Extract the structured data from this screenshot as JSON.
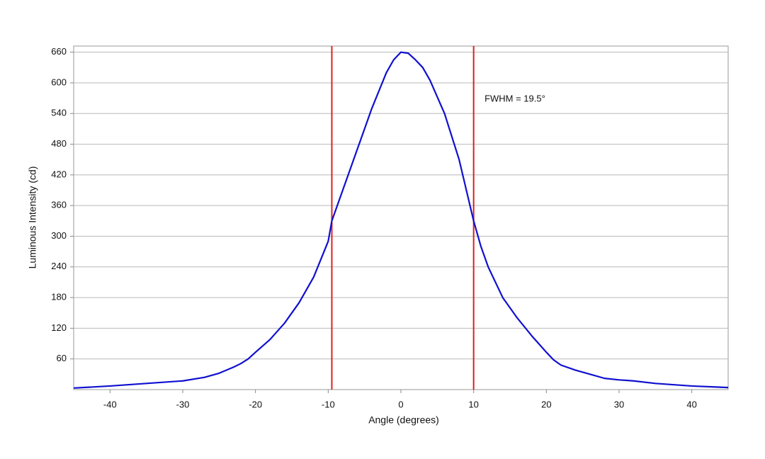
{
  "chart_data": {
    "type": "line",
    "xlabel": "Angle (degrees)",
    "ylabel": "Luminous Intensity (cd)",
    "annotation": {
      "text": "FWHM = 19.5°",
      "x": 11.5,
      "y": 568
    },
    "vlines": [
      -9.5,
      10
    ],
    "vline_color": "#e02020",
    "x": [
      -45,
      -40,
      -35,
      -30,
      -27,
      -25,
      -23,
      -22,
      -21,
      -20,
      -18,
      -16,
      -14,
      -12,
      -10,
      -9.5,
      -8,
      -6,
      -4,
      -2,
      -1,
      0,
      1,
      2,
      3,
      4,
      6,
      8,
      10,
      11,
      12,
      14,
      16,
      18,
      20,
      21,
      22,
      24,
      26,
      28,
      30,
      32,
      35,
      40,
      45
    ],
    "series": [
      {
        "name": "Intensity",
        "color": "#1010d0",
        "values": [
          3,
          7,
          12,
          17,
          24,
          32,
          44,
          51,
          60,
          73,
          98,
          130,
          170,
          220,
          290,
          330,
          390,
          470,
          550,
          620,
          645,
          660,
          658,
          645,
          630,
          605,
          540,
          450,
          330,
          280,
          240,
          180,
          140,
          105,
          73,
          58,
          48,
          38,
          30,
          22,
          19,
          17,
          12,
          7,
          4
        ]
      }
    ],
    "xlim": [
      -45,
      45
    ],
    "xticks": [
      -40,
      -30,
      -20,
      -10,
      0,
      10,
      20,
      30,
      40
    ],
    "ylim": [
      0,
      672
    ],
    "yticks": [
      60,
      120,
      180,
      240,
      300,
      360,
      420,
      480,
      540,
      600,
      660
    ],
    "grid": true
  }
}
